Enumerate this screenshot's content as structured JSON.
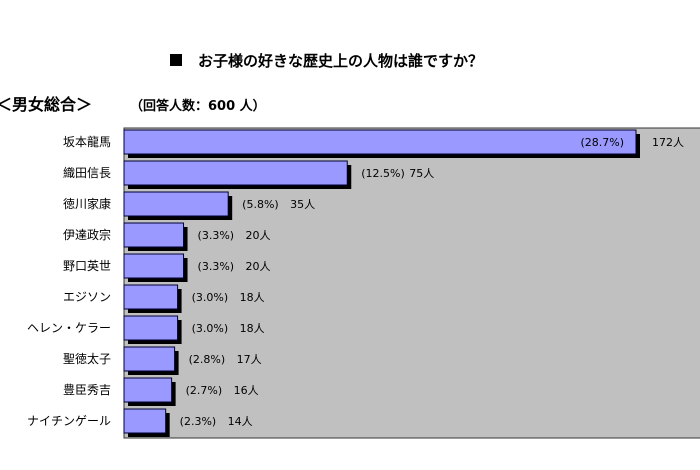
{
  "chart_data": {
    "type": "bar",
    "orientation": "horizontal",
    "title": "お子様の好きな歴史上の人物は誰ですか？",
    "subtitle": "＜男女総合＞",
    "respondents": "（回答人数：600 人）",
    "categories": [
      "坂本龍馬",
      "織田信長",
      "徳川家康",
      "伊達政宗",
      "野口英世",
      "エジソン",
      "ヘレン・ケラー",
      "聖徳太子",
      "豊臣秀吉",
      "ナイチンゲール"
    ],
    "values": [
      172,
      75,
      35,
      20,
      20,
      18,
      18,
      17,
      16,
      14
    ],
    "percent_labels": [
      "(28.7%)",
      "(12.5%)",
      "(5.8%)",
      "(3.3%)",
      "(3.3%)",
      "(3.0%)",
      "(3.0%)",
      "(2.8%)",
      "(2.7%)",
      "(2.3%)"
    ],
    "count_labels": [
      "172人",
      "75人",
      "35人",
      "20人",
      "20人",
      "18人",
      "18人",
      "17人",
      "16人",
      "14人"
    ],
    "xlim": [
      0,
      180
    ],
    "grid": false,
    "legend": "none",
    "colors": {
      "bar": "#9999ff",
      "bar_border": "#000033",
      "shadow": "#000000",
      "plot_background": "#c0c0c0",
      "title_marker": "#000000"
    }
  }
}
